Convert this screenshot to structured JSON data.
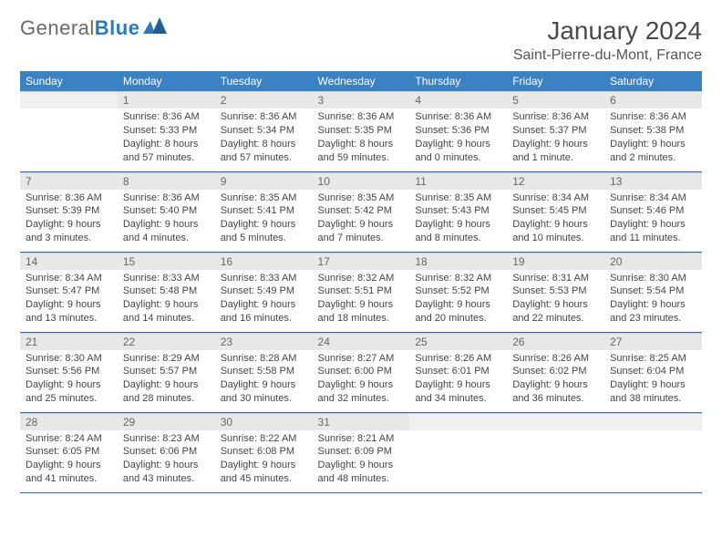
{
  "logo": {
    "word1": "General",
    "word2": "Blue"
  },
  "title": "January 2024",
  "location": "Saint-Pierre-du-Mont, France",
  "colors": {
    "header_bg": "#3a82c4",
    "header_text": "#ffffff",
    "daynum_bg": "#e8e8e8",
    "row_divider": "#2f6fa8",
    "logo_gray": "#6a6a6a",
    "logo_blue": "#2b7abf"
  },
  "weekdays": [
    "Sunday",
    "Monday",
    "Tuesday",
    "Wednesday",
    "Thursday",
    "Friday",
    "Saturday"
  ],
  "layout": {
    "first_weekday_index": 1,
    "days_in_month": 31
  },
  "days": [
    {
      "n": 1,
      "sunrise": "8:36 AM",
      "sunset": "5:33 PM",
      "daylight": "8 hours and 57 minutes."
    },
    {
      "n": 2,
      "sunrise": "8:36 AM",
      "sunset": "5:34 PM",
      "daylight": "8 hours and 57 minutes."
    },
    {
      "n": 3,
      "sunrise": "8:36 AM",
      "sunset": "5:35 PM",
      "daylight": "8 hours and 59 minutes."
    },
    {
      "n": 4,
      "sunrise": "8:36 AM",
      "sunset": "5:36 PM",
      "daylight": "9 hours and 0 minutes."
    },
    {
      "n": 5,
      "sunrise": "8:36 AM",
      "sunset": "5:37 PM",
      "daylight": "9 hours and 1 minute."
    },
    {
      "n": 6,
      "sunrise": "8:36 AM",
      "sunset": "5:38 PM",
      "daylight": "9 hours and 2 minutes."
    },
    {
      "n": 7,
      "sunrise": "8:36 AM",
      "sunset": "5:39 PM",
      "daylight": "9 hours and 3 minutes."
    },
    {
      "n": 8,
      "sunrise": "8:36 AM",
      "sunset": "5:40 PM",
      "daylight": "9 hours and 4 minutes."
    },
    {
      "n": 9,
      "sunrise": "8:35 AM",
      "sunset": "5:41 PM",
      "daylight": "9 hours and 5 minutes."
    },
    {
      "n": 10,
      "sunrise": "8:35 AM",
      "sunset": "5:42 PM",
      "daylight": "9 hours and 7 minutes."
    },
    {
      "n": 11,
      "sunrise": "8:35 AM",
      "sunset": "5:43 PM",
      "daylight": "9 hours and 8 minutes."
    },
    {
      "n": 12,
      "sunrise": "8:34 AM",
      "sunset": "5:45 PM",
      "daylight": "9 hours and 10 minutes."
    },
    {
      "n": 13,
      "sunrise": "8:34 AM",
      "sunset": "5:46 PM",
      "daylight": "9 hours and 11 minutes."
    },
    {
      "n": 14,
      "sunrise": "8:34 AM",
      "sunset": "5:47 PM",
      "daylight": "9 hours and 13 minutes."
    },
    {
      "n": 15,
      "sunrise": "8:33 AM",
      "sunset": "5:48 PM",
      "daylight": "9 hours and 14 minutes."
    },
    {
      "n": 16,
      "sunrise": "8:33 AM",
      "sunset": "5:49 PM",
      "daylight": "9 hours and 16 minutes."
    },
    {
      "n": 17,
      "sunrise": "8:32 AM",
      "sunset": "5:51 PM",
      "daylight": "9 hours and 18 minutes."
    },
    {
      "n": 18,
      "sunrise": "8:32 AM",
      "sunset": "5:52 PM",
      "daylight": "9 hours and 20 minutes."
    },
    {
      "n": 19,
      "sunrise": "8:31 AM",
      "sunset": "5:53 PM",
      "daylight": "9 hours and 22 minutes."
    },
    {
      "n": 20,
      "sunrise": "8:30 AM",
      "sunset": "5:54 PM",
      "daylight": "9 hours and 23 minutes."
    },
    {
      "n": 21,
      "sunrise": "8:30 AM",
      "sunset": "5:56 PM",
      "daylight": "9 hours and 25 minutes."
    },
    {
      "n": 22,
      "sunrise": "8:29 AM",
      "sunset": "5:57 PM",
      "daylight": "9 hours and 28 minutes."
    },
    {
      "n": 23,
      "sunrise": "8:28 AM",
      "sunset": "5:58 PM",
      "daylight": "9 hours and 30 minutes."
    },
    {
      "n": 24,
      "sunrise": "8:27 AM",
      "sunset": "6:00 PM",
      "daylight": "9 hours and 32 minutes."
    },
    {
      "n": 25,
      "sunrise": "8:26 AM",
      "sunset": "6:01 PM",
      "daylight": "9 hours and 34 minutes."
    },
    {
      "n": 26,
      "sunrise": "8:26 AM",
      "sunset": "6:02 PM",
      "daylight": "9 hours and 36 minutes."
    },
    {
      "n": 27,
      "sunrise": "8:25 AM",
      "sunset": "6:04 PM",
      "daylight": "9 hours and 38 minutes."
    },
    {
      "n": 28,
      "sunrise": "8:24 AM",
      "sunset": "6:05 PM",
      "daylight": "9 hours and 41 minutes."
    },
    {
      "n": 29,
      "sunrise": "8:23 AM",
      "sunset": "6:06 PM",
      "daylight": "9 hours and 43 minutes."
    },
    {
      "n": 30,
      "sunrise": "8:22 AM",
      "sunset": "6:08 PM",
      "daylight": "9 hours and 45 minutes."
    },
    {
      "n": 31,
      "sunrise": "8:21 AM",
      "sunset": "6:09 PM",
      "daylight": "9 hours and 48 minutes."
    }
  ],
  "labels": {
    "sunrise": "Sunrise:",
    "sunset": "Sunset:",
    "daylight": "Daylight:"
  }
}
